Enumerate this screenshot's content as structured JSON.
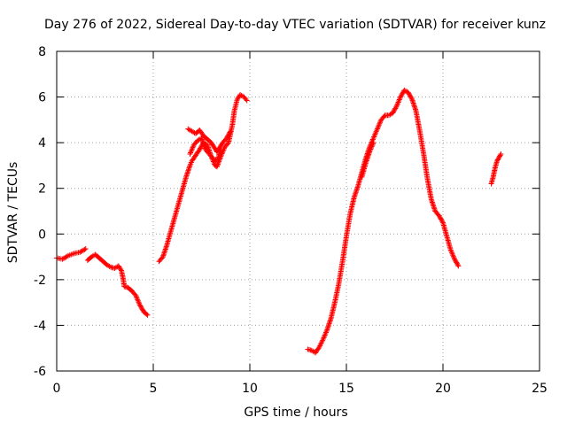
{
  "chart_data": {
    "type": "scatter",
    "title": "Day 276 of 2022, Sidereal Day-to-day VTEC variation (SDTVAR) for receiver kunz",
    "xlabel": "GPS time / hours",
    "ylabel": "SDTVAR / TECUs",
    "xlim": [
      0,
      25
    ],
    "ylim": [
      -6,
      8
    ],
    "xticks": [
      0,
      5,
      10,
      15,
      20,
      25
    ],
    "yticks": [
      -6,
      -4,
      -2,
      0,
      2,
      4,
      6,
      8
    ],
    "grid": true,
    "marker": "plus",
    "color": "#ff0000",
    "segments": [
      [
        [
          0.0,
          -1.05
        ],
        [
          0.3,
          -1.1
        ],
        [
          0.6,
          -0.95
        ],
        [
          0.9,
          -0.85
        ],
        [
          1.2,
          -0.8
        ],
        [
          1.5,
          -0.65
        ]
      ],
      [
        [
          1.6,
          -1.15
        ],
        [
          1.8,
          -1.0
        ],
        [
          2.0,
          -0.9
        ],
        [
          2.2,
          -1.05
        ],
        [
          2.4,
          -1.2
        ],
        [
          2.6,
          -1.35
        ],
        [
          2.8,
          -1.45
        ],
        [
          3.0,
          -1.5
        ],
        [
          3.2,
          -1.4
        ],
        [
          3.35,
          -1.6
        ],
        [
          3.45,
          -2.0
        ],
        [
          3.5,
          -2.3
        ],
        [
          3.7,
          -2.35
        ],
        [
          3.9,
          -2.5
        ],
        [
          4.1,
          -2.7
        ],
        [
          4.3,
          -3.1
        ],
        [
          4.5,
          -3.4
        ],
        [
          4.7,
          -3.55
        ]
      ],
      [
        [
          5.3,
          -1.2
        ],
        [
          5.5,
          -1.0
        ],
        [
          5.7,
          -0.5
        ],
        [
          5.9,
          0.1
        ],
        [
          6.1,
          0.7
        ],
        [
          6.3,
          1.3
        ],
        [
          6.5,
          1.9
        ],
        [
          6.7,
          2.5
        ],
        [
          6.9,
          3.0
        ],
        [
          7.0,
          3.2
        ],
        [
          7.2,
          3.45
        ],
        [
          7.4,
          3.7
        ],
        [
          7.6,
          4.0
        ],
        [
          7.8,
          3.9
        ],
        [
          8.0,
          3.4
        ],
        [
          8.2,
          3.0
        ],
        [
          8.3,
          2.95
        ],
        [
          8.5,
          3.4
        ],
        [
          8.7,
          3.8
        ],
        [
          8.9,
          4.0
        ],
        [
          9.1,
          4.8
        ],
        [
          9.2,
          5.4
        ],
        [
          9.35,
          5.9
        ],
        [
          9.5,
          6.1
        ],
        [
          9.7,
          6.0
        ],
        [
          9.85,
          5.85
        ]
      ],
      [
        [
          6.8,
          4.6
        ],
        [
          7.0,
          4.5
        ],
        [
          7.2,
          4.4
        ],
        [
          7.4,
          4.55
        ],
        [
          7.6,
          4.3
        ],
        [
          7.8,
          4.15
        ],
        [
          8.0,
          4.0
        ],
        [
          8.3,
          3.6
        ],
        [
          8.6,
          4.0
        ],
        [
          8.8,
          4.2
        ],
        [
          9.0,
          4.5
        ]
      ],
      [
        [
          6.9,
          3.5
        ],
        [
          7.1,
          3.9
        ],
        [
          7.3,
          4.1
        ],
        [
          7.5,
          4.2
        ],
        [
          7.7,
          3.7
        ],
        [
          7.9,
          3.5
        ],
        [
          8.1,
          3.3
        ],
        [
          8.3,
          3.2
        ],
        [
          8.5,
          3.7
        ]
      ],
      [
        [
          13.0,
          -5.05
        ],
        [
          13.2,
          -5.1
        ],
        [
          13.4,
          -5.2
        ],
        [
          13.6,
          -4.95
        ],
        [
          13.8,
          -4.6
        ],
        [
          14.0,
          -4.2
        ],
        [
          14.2,
          -3.7
        ],
        [
          14.4,
          -3.0
        ],
        [
          14.6,
          -2.2
        ],
        [
          14.8,
          -1.2
        ],
        [
          15.0,
          -0.1
        ],
        [
          15.2,
          0.9
        ],
        [
          15.4,
          1.6
        ],
        [
          15.6,
          2.1
        ],
        [
          15.8,
          2.7
        ],
        [
          16.0,
          3.3
        ],
        [
          16.2,
          3.8
        ],
        [
          16.4,
          4.2
        ],
        [
          16.6,
          4.6
        ],
        [
          16.8,
          5.0
        ],
        [
          17.0,
          5.2
        ],
        [
          17.2,
          5.2
        ],
        [
          17.4,
          5.3
        ],
        [
          17.6,
          5.6
        ],
        [
          17.8,
          6.0
        ],
        [
          18.0,
          6.3
        ],
        [
          18.2,
          6.2
        ],
        [
          18.4,
          5.9
        ],
        [
          18.6,
          5.4
        ],
        [
          18.8,
          4.5
        ],
        [
          19.0,
          3.5
        ],
        [
          19.2,
          2.4
        ],
        [
          19.4,
          1.5
        ],
        [
          19.6,
          1.0
        ],
        [
          19.8,
          0.8
        ],
        [
          20.0,
          0.5
        ],
        [
          20.2,
          -0.1
        ],
        [
          20.4,
          -0.7
        ],
        [
          20.6,
          -1.1
        ],
        [
          20.8,
          -1.4
        ]
      ],
      [
        [
          15.8,
          2.5
        ],
        [
          16.0,
          3.1
        ],
        [
          16.2,
          3.6
        ],
        [
          16.4,
          4.0
        ]
      ],
      [
        [
          22.5,
          2.2
        ],
        [
          22.6,
          2.5
        ],
        [
          22.7,
          2.9
        ],
        [
          22.8,
          3.2
        ],
        [
          22.9,
          3.35
        ],
        [
          23.0,
          3.5
        ]
      ]
    ]
  }
}
